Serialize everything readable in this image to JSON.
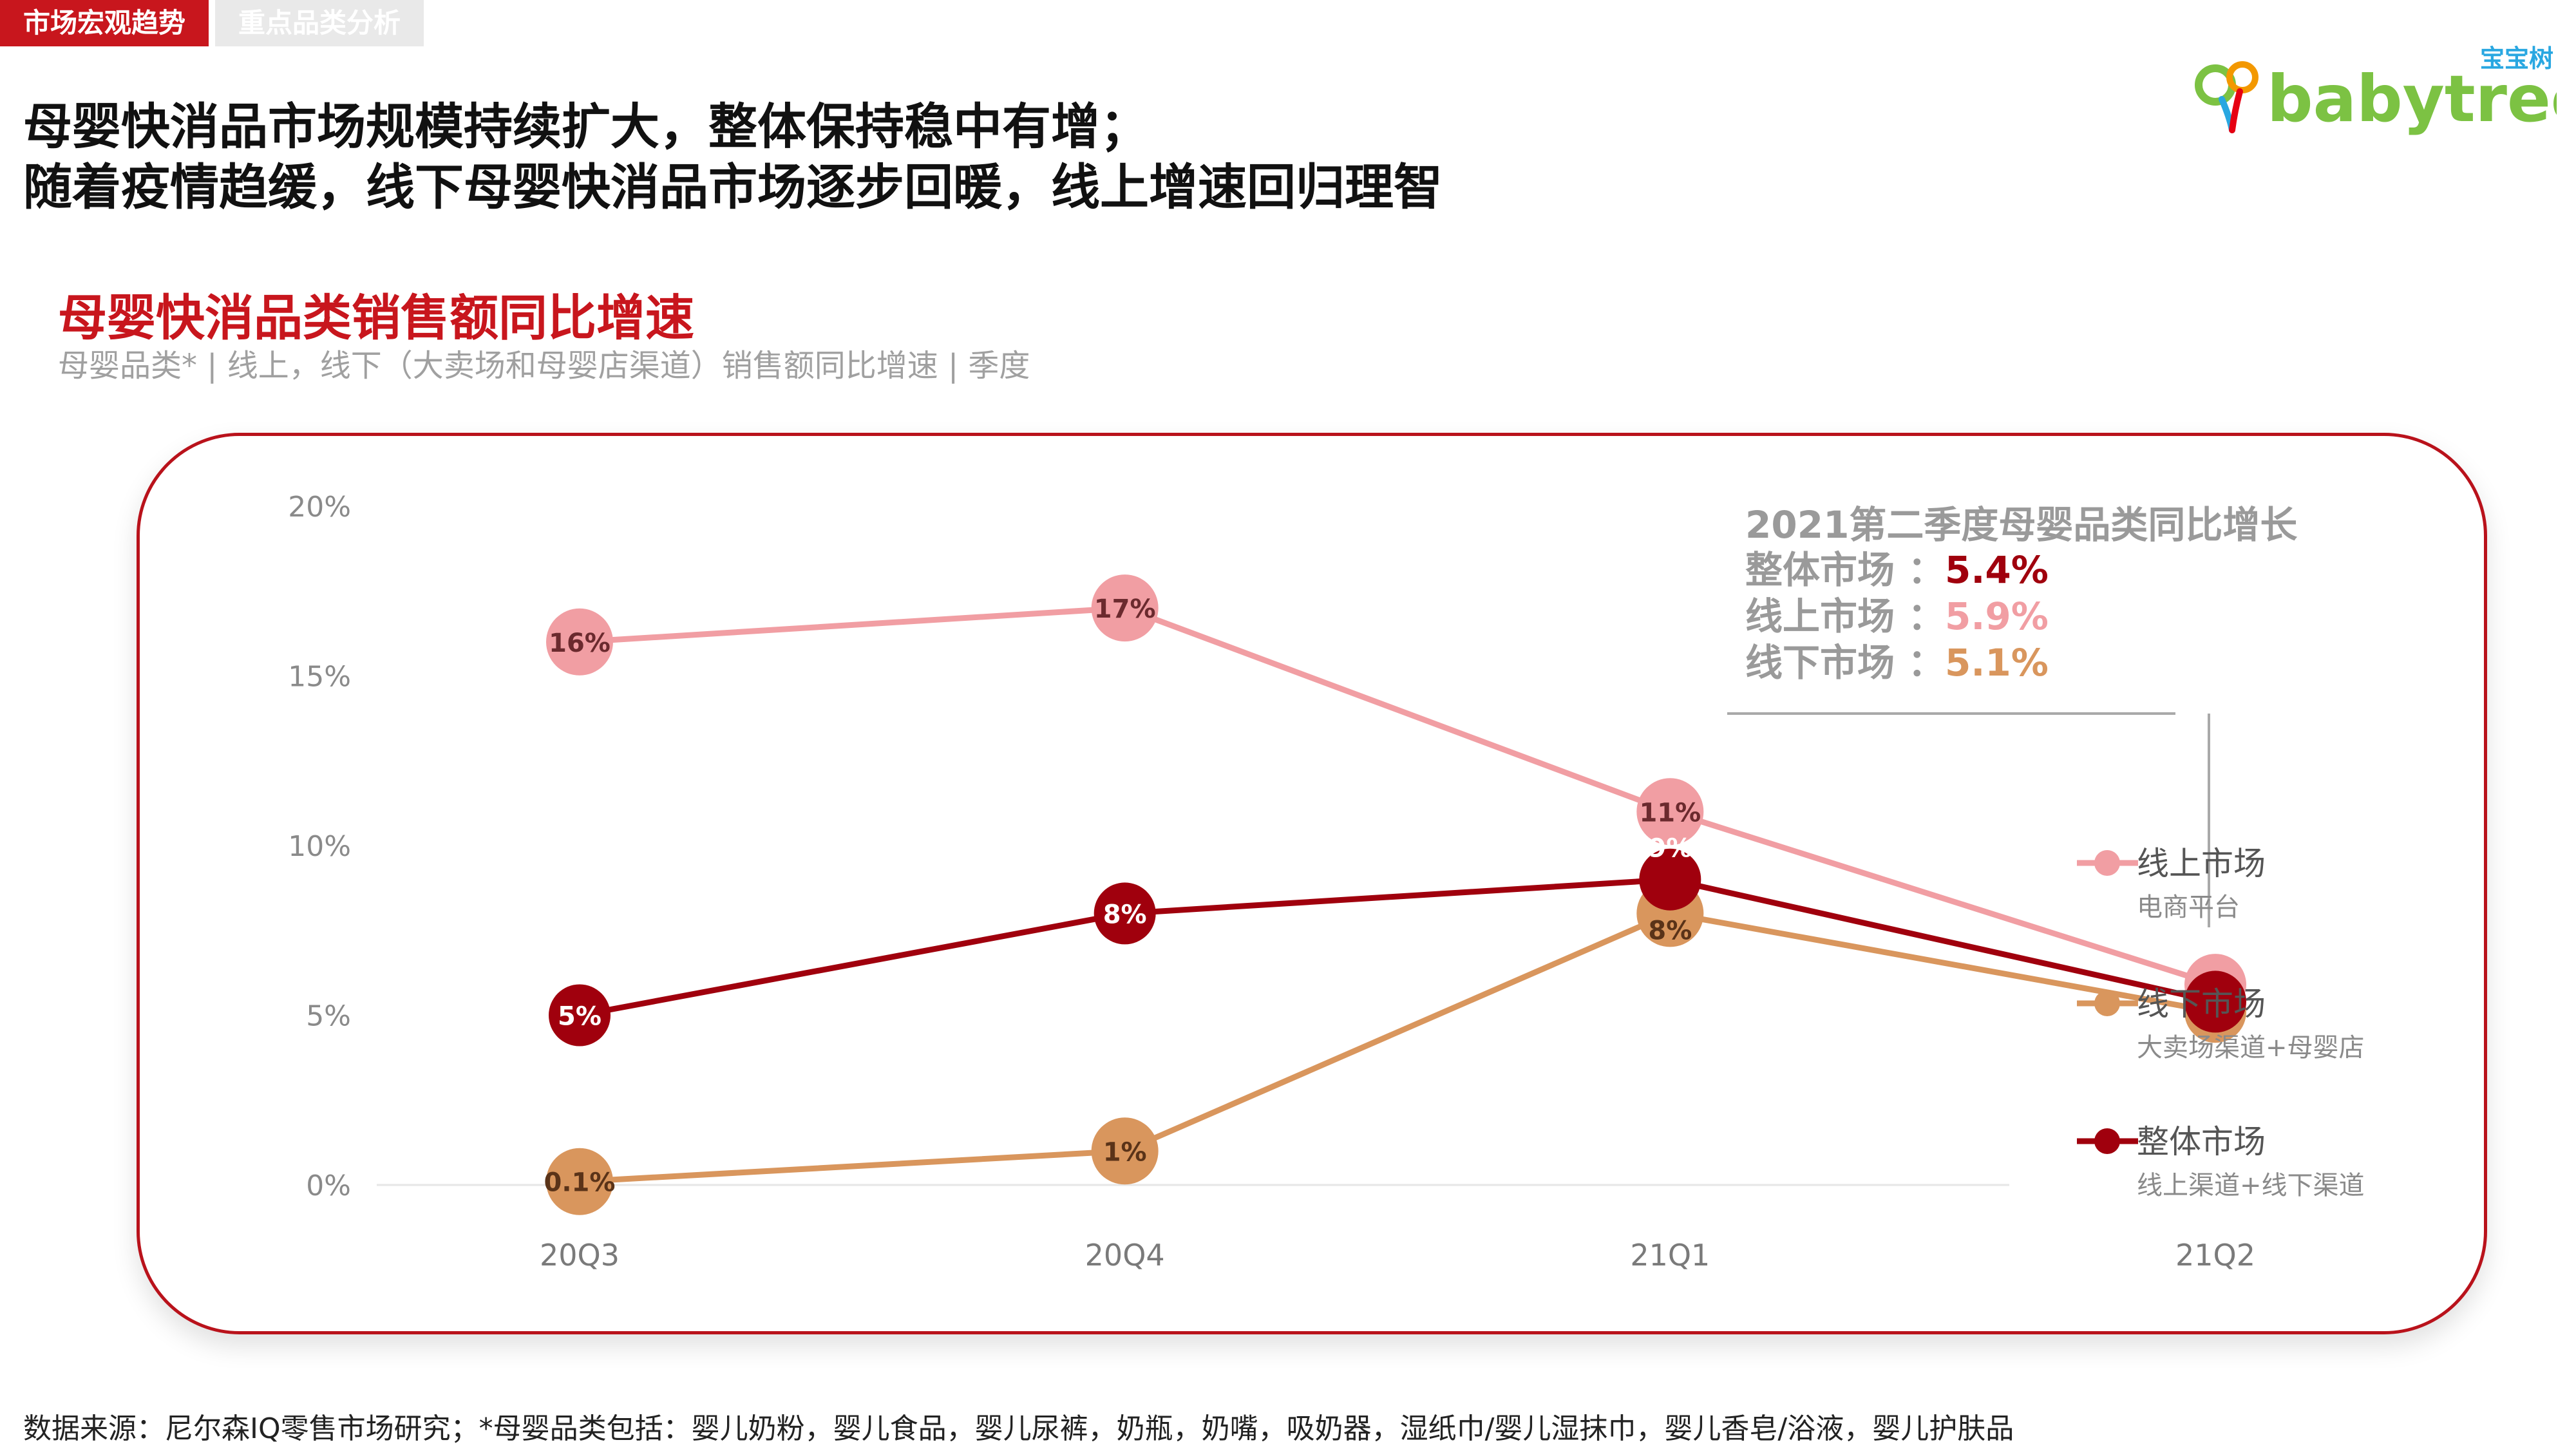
{
  "tabs": [
    {
      "label": "市场宏观趋势",
      "active": true
    },
    {
      "label": "重点品类分析",
      "active": false
    }
  ],
  "headline": {
    "line1": "母婴快消品市场规模持续扩大，整体保持稳中有增；",
    "line2": "随着疫情趋缓，线下母婴快消品市场逐步回暖，线上增速回归理智"
  },
  "logo": {
    "cn": "宝宝树",
    "en": "babytree",
    "colors": {
      "green": "#7cc243",
      "orange": "#f39800",
      "blue": "#29a7e1",
      "red": "#e60012"
    }
  },
  "chart_data": {
    "type": "line",
    "title": "母婴快消品类销售额同比增速",
    "subtitle": "母婴品类* | 线上，线下（大卖场和母婴店渠道）销售额同比增速 | 季度",
    "categories": [
      "20Q3",
      "20Q4",
      "21Q1",
      "21Q2"
    ],
    "ylim": [
      0,
      20
    ],
    "yticks": [
      "0%",
      "5%",
      "10%",
      "15%",
      "20%"
    ],
    "ytick_values": [
      0,
      5,
      10,
      15,
      20
    ],
    "series": [
      {
        "name": "线上市场",
        "desc": "电商平台",
        "color": "#f19ea3",
        "values": [
          16,
          17,
          11,
          5.9
        ],
        "labels": [
          "16%",
          "17%",
          "11%",
          ""
        ]
      },
      {
        "name": "线下市场",
        "desc": "大卖场渠道+母婴店",
        "color": "#d9965d",
        "values": [
          0.1,
          1,
          8,
          5.1
        ],
        "labels": [
          "0.1%",
          "1%",
          "8%",
          ""
        ]
      },
      {
        "name": "整体市场",
        "desc": "线上渠道+线下渠道",
        "color": "#a0000d",
        "values": [
          5,
          8,
          9,
          5.4
        ],
        "labels": [
          "5%",
          "8%",
          "9%",
          ""
        ]
      }
    ],
    "callout": {
      "title": "2021第二季度母婴品类同比增长",
      "rows": [
        {
          "label": "整体市场 ：",
          "value": "5.4%",
          "color": "#a0000d"
        },
        {
          "label": "线上市场 ：",
          "value": "5.9%",
          "color": "#f19ea3"
        },
        {
          "label": "线下市场 ：",
          "value": "5.1%",
          "color": "#d9965d"
        }
      ]
    }
  },
  "footer": "数据来源：尼尔森IQ零售市场研究；*母婴品类包括：婴儿奶粉，婴儿食品，婴儿尿裤，奶瓶，奶嘴，吸奶器，湿纸巾/婴儿湿抹巾，婴儿香皂/浴液，婴儿护肤品"
}
